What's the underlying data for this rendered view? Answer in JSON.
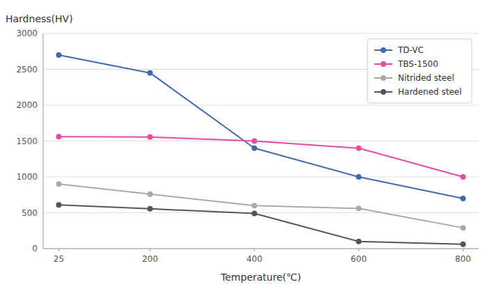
{
  "chart_data": {
    "type": "line",
    "xlabel": "Temperature(℃)",
    "ylabel": "Hardness(HV)",
    "x": [
      25,
      200,
      400,
      600,
      800
    ],
    "series": [
      {
        "name": "TD-VC",
        "color": "#4169B0",
        "marker": "circle",
        "values": [
          2700,
          2450,
          1400,
          1000,
          700
        ]
      },
      {
        "name": "TBS-1500",
        "color": "#E84CA0",
        "marker": "circle",
        "values": [
          1560,
          1555,
          1500,
          1400,
          1000
        ]
      },
      {
        "name": "Nitrided steel",
        "color": "#A9A9A9",
        "marker": "circle",
        "values": [
          900,
          760,
          600,
          560,
          290
        ]
      },
      {
        "name": "Hardened steel",
        "color": "#555555",
        "marker": "circle",
        "values": [
          610,
          555,
          490,
          100,
          60
        ]
      }
    ],
    "xlim": [
      -5,
      830
    ],
    "xticks": [
      25,
      200,
      400,
      600,
      800
    ],
    "ylim": [
      0,
      3000
    ],
    "yticks": [
      0,
      500,
      1000,
      1500,
      2000,
      2500,
      3000
    ],
    "grid": true,
    "legend": "upper right"
  }
}
